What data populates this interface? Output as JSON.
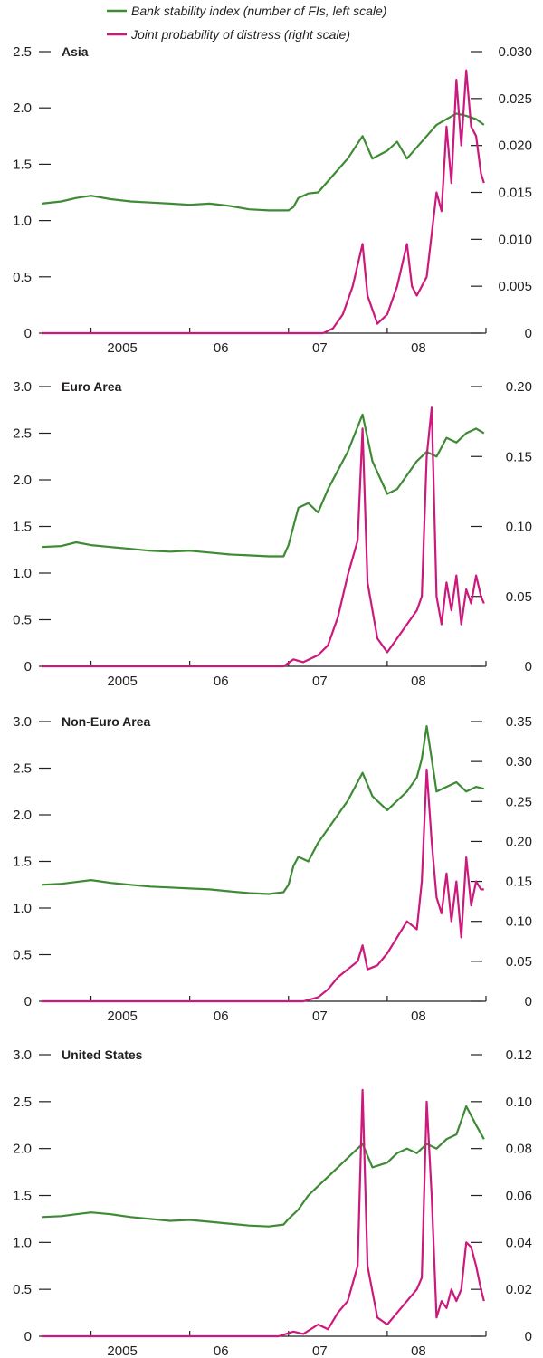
{
  "legend": [
    {
      "name": "Bank stability index (number of FIs, left scale)",
      "color": "#3e8a35"
    },
    {
      "name": "Joint probability of distress (right scale)",
      "color": "#cc1a7c"
    }
  ],
  "chart_data": [
    {
      "type": "line",
      "title": "Asia",
      "x_tick_labels": [
        "2005",
        "06",
        "07",
        "08"
      ],
      "x_range": [
        "2004-07",
        "2008-12"
      ],
      "left_axis": {
        "ticks": [
          "0",
          "0.5",
          "1.0",
          "1.5",
          "2.0",
          "2.5"
        ],
        "ylim": [
          0,
          2.5
        ]
      },
      "right_axis": {
        "ticks": [
          "0",
          "0.005",
          "0.010",
          "0.015",
          "0.020",
          "0.025",
          "0.030"
        ],
        "ylim": [
          0,
          0.03
        ]
      },
      "series": [
        {
          "name": "Bank stability index (number of FIs, left scale)",
          "axis": "left",
          "x": [
            2004.5,
            2004.7,
            2004.85,
            2005.0,
            2005.2,
            2005.4,
            2005.6,
            2005.8,
            2006.0,
            2006.2,
            2006.4,
            2006.6,
            2006.8,
            2007.0,
            2007.05,
            2007.1,
            2007.2,
            2007.3,
            2007.4,
            2007.5,
            2007.6,
            2007.75,
            2007.85,
            2008.0,
            2008.1,
            2008.2,
            2008.3,
            2008.4,
            2008.5,
            2008.6,
            2008.7,
            2008.8,
            2008.9,
            2008.98
          ],
          "values": [
            1.15,
            1.17,
            1.2,
            1.22,
            1.19,
            1.17,
            1.16,
            1.15,
            1.14,
            1.15,
            1.13,
            1.1,
            1.09,
            1.09,
            1.12,
            1.2,
            1.24,
            1.25,
            1.35,
            1.45,
            1.55,
            1.75,
            1.55,
            1.62,
            1.7,
            1.55,
            1.65,
            1.75,
            1.85,
            1.9,
            1.95,
            1.93,
            1.9,
            1.85
          ]
        },
        {
          "name": "Joint probability of distress (right scale)",
          "axis": "right",
          "x": [
            2004.5,
            2006.5,
            2007.0,
            2007.35,
            2007.45,
            2007.55,
            2007.65,
            2007.75,
            2007.8,
            2007.9,
            2008.0,
            2008.1,
            2008.2,
            2008.25,
            2008.3,
            2008.4,
            2008.5,
            2008.55,
            2008.6,
            2008.65,
            2008.7,
            2008.75,
            2008.8,
            2008.85,
            2008.9,
            2008.95,
            2008.98
          ],
          "values": [
            0.0,
            0.0,
            0.0,
            0.0,
            0.0005,
            0.002,
            0.005,
            0.0095,
            0.004,
            0.001,
            0.002,
            0.005,
            0.0095,
            0.005,
            0.004,
            0.006,
            0.015,
            0.013,
            0.022,
            0.016,
            0.027,
            0.02,
            0.028,
            0.022,
            0.021,
            0.017,
            0.016
          ]
        }
      ]
    },
    {
      "type": "line",
      "title": "Euro Area",
      "x_tick_labels": [
        "2005",
        "06",
        "07",
        "08"
      ],
      "x_range": [
        "2004-07",
        "2008-12"
      ],
      "left_axis": {
        "ticks": [
          "0",
          "0.5",
          "1.0",
          "1.5",
          "2.0",
          "2.5",
          "3.0"
        ],
        "ylim": [
          0,
          3.0
        ]
      },
      "right_axis": {
        "ticks": [
          "0",
          "0.05",
          "0.10",
          "0.15",
          "0.20"
        ],
        "ylim": [
          0,
          0.2
        ]
      },
      "series": [
        {
          "name": "Bank stability index (number of FIs, left scale)",
          "axis": "left",
          "x": [
            2004.5,
            2004.7,
            2004.85,
            2005.0,
            2005.2,
            2005.4,
            2005.6,
            2005.8,
            2006.0,
            2006.2,
            2006.4,
            2006.6,
            2006.8,
            2006.95,
            2007.0,
            2007.05,
            2007.1,
            2007.2,
            2007.3,
            2007.4,
            2007.5,
            2007.6,
            2007.75,
            2007.85,
            2008.0,
            2008.1,
            2008.2,
            2008.3,
            2008.4,
            2008.5,
            2008.6,
            2008.7,
            2008.8,
            2008.9,
            2008.98
          ],
          "values": [
            1.28,
            1.29,
            1.33,
            1.3,
            1.28,
            1.26,
            1.24,
            1.23,
            1.24,
            1.22,
            1.2,
            1.19,
            1.18,
            1.18,
            1.3,
            1.5,
            1.7,
            1.75,
            1.65,
            1.9,
            2.1,
            2.3,
            2.7,
            2.2,
            1.85,
            1.9,
            2.05,
            2.2,
            2.3,
            2.25,
            2.45,
            2.4,
            2.5,
            2.55,
            2.5
          ]
        },
        {
          "name": "Joint probability of distress (right scale)",
          "axis": "right",
          "x": [
            2004.5,
            2006.8,
            2006.95,
            2007.05,
            2007.15,
            2007.3,
            2007.4,
            2007.5,
            2007.6,
            2007.7,
            2007.75,
            2007.8,
            2007.9,
            2008.0,
            2008.1,
            2008.2,
            2008.3,
            2008.35,
            2008.4,
            2008.45,
            2008.5,
            2008.55,
            2008.6,
            2008.65,
            2008.7,
            2008.75,
            2008.8,
            2008.85,
            2008.9,
            2008.95,
            2008.98
          ],
          "values": [
            0.0,
            0.0,
            0.0,
            0.005,
            0.003,
            0.008,
            0.015,
            0.035,
            0.065,
            0.09,
            0.17,
            0.06,
            0.02,
            0.01,
            0.02,
            0.03,
            0.04,
            0.05,
            0.15,
            0.185,
            0.05,
            0.03,
            0.06,
            0.04,
            0.065,
            0.03,
            0.055,
            0.045,
            0.065,
            0.05,
            0.045
          ]
        }
      ]
    },
    {
      "type": "line",
      "title": "Non-Euro Area",
      "x_tick_labels": [
        "2005",
        "06",
        "07",
        "08"
      ],
      "x_range": [
        "2004-07",
        "2008-12"
      ],
      "left_axis": {
        "ticks": [
          "0",
          "0.5",
          "1.0",
          "1.5",
          "2.0",
          "2.5",
          "3.0"
        ],
        "ylim": [
          0,
          3.0
        ]
      },
      "right_axis": {
        "ticks": [
          "0",
          "0.05",
          "0.10",
          "0.15",
          "0.20",
          "0.25",
          "0.30",
          "0.35"
        ],
        "ylim": [
          0,
          0.35
        ]
      },
      "series": [
        {
          "name": "Bank stability index (number of FIs, left scale)",
          "axis": "left",
          "x": [
            2004.5,
            2004.7,
            2004.85,
            2005.0,
            2005.2,
            2005.4,
            2005.6,
            2005.8,
            2006.0,
            2006.2,
            2006.4,
            2006.6,
            2006.8,
            2006.95,
            2007.0,
            2007.05,
            2007.1,
            2007.2,
            2007.3,
            2007.4,
            2007.5,
            2007.6,
            2007.75,
            2007.85,
            2008.0,
            2008.1,
            2008.2,
            2008.3,
            2008.35,
            2008.4,
            2008.45,
            2008.5,
            2008.6,
            2008.7,
            2008.8,
            2008.9,
            2008.98
          ],
          "values": [
            1.25,
            1.26,
            1.28,
            1.3,
            1.27,
            1.25,
            1.23,
            1.22,
            1.21,
            1.2,
            1.18,
            1.16,
            1.15,
            1.17,
            1.25,
            1.45,
            1.55,
            1.5,
            1.7,
            1.85,
            2.0,
            2.15,
            2.45,
            2.2,
            2.05,
            2.15,
            2.25,
            2.4,
            2.6,
            2.95,
            2.6,
            2.25,
            2.3,
            2.35,
            2.25,
            2.3,
            2.28
          ]
        },
        {
          "name": "Joint probability of distress (right scale)",
          "axis": "right",
          "x": [
            2004.5,
            2007.15,
            2007.3,
            2007.4,
            2007.5,
            2007.6,
            2007.7,
            2007.75,
            2007.8,
            2007.9,
            2008.0,
            2008.1,
            2008.2,
            2008.3,
            2008.35,
            2008.4,
            2008.45,
            2008.5,
            2008.55,
            2008.6,
            2008.65,
            2008.7,
            2008.75,
            2008.8,
            2008.85,
            2008.9,
            2008.95,
            2008.98
          ],
          "values": [
            0.0,
            0.0,
            0.005,
            0.015,
            0.03,
            0.04,
            0.05,
            0.07,
            0.04,
            0.045,
            0.06,
            0.08,
            0.1,
            0.09,
            0.15,
            0.29,
            0.2,
            0.13,
            0.11,
            0.16,
            0.1,
            0.15,
            0.08,
            0.18,
            0.12,
            0.15,
            0.14,
            0.14
          ]
        }
      ]
    },
    {
      "type": "line",
      "title": "United States",
      "x_tick_labels": [
        "2005",
        "06",
        "07",
        "08"
      ],
      "x_range": [
        "2004-07",
        "2008-12"
      ],
      "left_axis": {
        "ticks": [
          "0",
          "0.5",
          "1.0",
          "1.5",
          "2.0",
          "2.5",
          "3.0"
        ],
        "ylim": [
          0,
          3.0
        ]
      },
      "right_axis": {
        "ticks": [
          "0",
          "0.02",
          "0.04",
          "0.06",
          "0.08",
          "0.10",
          "0.12"
        ],
        "ylim": [
          0,
          0.12
        ]
      },
      "series": [
        {
          "name": "Bank stability index (number of FIs, left scale)",
          "axis": "left",
          "x": [
            2004.5,
            2004.7,
            2004.85,
            2005.0,
            2005.2,
            2005.4,
            2005.6,
            2005.8,
            2006.0,
            2006.2,
            2006.4,
            2006.6,
            2006.8,
            2006.95,
            2007.0,
            2007.1,
            2007.2,
            2007.3,
            2007.4,
            2007.5,
            2007.6,
            2007.75,
            2007.85,
            2008.0,
            2008.1,
            2008.2,
            2008.3,
            2008.4,
            2008.5,
            2008.6,
            2008.7,
            2008.8,
            2008.9,
            2008.98
          ],
          "values": [
            1.27,
            1.28,
            1.3,
            1.32,
            1.3,
            1.27,
            1.25,
            1.23,
            1.24,
            1.22,
            1.2,
            1.18,
            1.17,
            1.19,
            1.25,
            1.35,
            1.5,
            1.6,
            1.7,
            1.8,
            1.9,
            2.05,
            1.8,
            1.85,
            1.95,
            2.0,
            1.95,
            2.05,
            2.0,
            2.1,
            2.15,
            2.45,
            2.25,
            2.1
          ]
        },
        {
          "name": "Joint probability of distress (right scale)",
          "axis": "right",
          "x": [
            2004.5,
            2006.9,
            2007.05,
            2007.15,
            2007.3,
            2007.4,
            2007.5,
            2007.6,
            2007.7,
            2007.75,
            2007.8,
            2007.9,
            2008.0,
            2008.1,
            2008.2,
            2008.3,
            2008.35,
            2008.4,
            2008.45,
            2008.5,
            2008.55,
            2008.6,
            2008.65,
            2008.7,
            2008.75,
            2008.8,
            2008.85,
            2008.9,
            2008.95,
            2008.98
          ],
          "values": [
            0.0,
            0.0,
            0.002,
            0.001,
            0.005,
            0.003,
            0.01,
            0.015,
            0.03,
            0.105,
            0.03,
            0.008,
            0.005,
            0.01,
            0.015,
            0.02,
            0.025,
            0.1,
            0.06,
            0.008,
            0.015,
            0.012,
            0.02,
            0.015,
            0.02,
            0.04,
            0.038,
            0.03,
            0.02,
            0.015
          ]
        }
      ]
    }
  ]
}
